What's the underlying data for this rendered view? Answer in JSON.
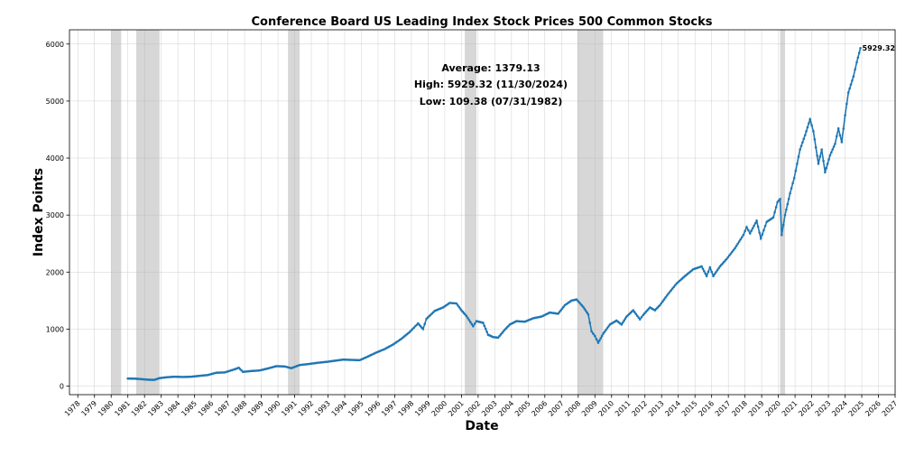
{
  "chart_data": {
    "type": "line",
    "title": "Conference Board US Leading Index Stock Prices 500 Common Stocks",
    "xlabel": "Date",
    "ylabel": "Index Points",
    "xlim": [
      1977.5,
      2027.0
    ],
    "ylim": [
      -150,
      6250
    ],
    "grid": true,
    "x_ticks": [
      1978,
      1979,
      1980,
      1981,
      1982,
      1983,
      1984,
      1985,
      1986,
      1987,
      1988,
      1989,
      1990,
      1991,
      1992,
      1993,
      1994,
      1995,
      1996,
      1997,
      1998,
      1999,
      2000,
      2001,
      2002,
      2003,
      2004,
      2005,
      2006,
      2007,
      2008,
      2009,
      2010,
      2011,
      2012,
      2013,
      2014,
      2015,
      2016,
      2017,
      2018,
      2019,
      2020,
      2021,
      2022,
      2023,
      2024,
      2025,
      2026,
      2027
    ],
    "y_ticks": [
      0,
      1000,
      2000,
      3000,
      4000,
      5000,
      6000
    ],
    "series_color": "#1f77b4",
    "recession_color": "#d3d3d3",
    "recessions": [
      {
        "start": 1980.0,
        "end": 1980.6
      },
      {
        "start": 1981.5,
        "end": 1982.9
      },
      {
        "start": 1990.6,
        "end": 1991.3
      },
      {
        "start": 2001.2,
        "end": 2001.9
      },
      {
        "start": 2007.95,
        "end": 2009.5
      },
      {
        "start": 2020.1,
        "end": 2020.4
      }
    ],
    "stats": {
      "average": "Average: 1379.13",
      "high": "High: 5929.32 (11/30/2024)",
      "low": "Low: 109.38 (07/31/1982)"
    },
    "end_label": "5929.32",
    "series": [
      {
        "name": "Stock Prices 500 Common Stocks",
        "points": [
          [
            1981.0,
            133
          ],
          [
            1981.4,
            131
          ],
          [
            1981.8,
            123
          ],
          [
            1982.2,
            113
          ],
          [
            1982.58,
            109.38
          ],
          [
            1982.9,
            140
          ],
          [
            1983.3,
            155
          ],
          [
            1983.8,
            165
          ],
          [
            1984.3,
            160
          ],
          [
            1984.8,
            165
          ],
          [
            1985.3,
            180
          ],
          [
            1985.8,
            195
          ],
          [
            1986.3,
            235
          ],
          [
            1986.8,
            240
          ],
          [
            1987.4,
            295
          ],
          [
            1987.65,
            322
          ],
          [
            1987.9,
            250
          ],
          [
            1988.4,
            265
          ],
          [
            1988.9,
            275
          ],
          [
            1989.4,
            310
          ],
          [
            1989.9,
            350
          ],
          [
            1990.4,
            345
          ],
          [
            1990.8,
            315
          ],
          [
            1991.3,
            370
          ],
          [
            1991.9,
            390
          ],
          [
            1992.4,
            410
          ],
          [
            1992.9,
            425
          ],
          [
            1993.4,
            445
          ],
          [
            1993.9,
            465
          ],
          [
            1994.4,
            460
          ],
          [
            1994.9,
            455
          ],
          [
            1995.4,
            520
          ],
          [
            1995.9,
            590
          ],
          [
            1996.4,
            650
          ],
          [
            1996.9,
            730
          ],
          [
            1997.4,
            830
          ],
          [
            1997.9,
            950
          ],
          [
            1998.4,
            1100
          ],
          [
            1998.7,
            1000
          ],
          [
            1998.9,
            1180
          ],
          [
            1999.4,
            1320
          ],
          [
            1999.9,
            1380
          ],
          [
            2000.3,
            1460
          ],
          [
            2000.7,
            1450
          ],
          [
            2001.0,
            1330
          ],
          [
            2001.3,
            1230
          ],
          [
            2001.7,
            1050
          ],
          [
            2001.9,
            1140
          ],
          [
            2002.3,
            1110
          ],
          [
            2002.6,
            900
          ],
          [
            2002.9,
            860
          ],
          [
            2003.2,
            850
          ],
          [
            2003.6,
            990
          ],
          [
            2003.9,
            1080
          ],
          [
            2004.3,
            1140
          ],
          [
            2004.8,
            1130
          ],
          [
            2005.3,
            1190
          ],
          [
            2005.8,
            1220
          ],
          [
            2006.3,
            1290
          ],
          [
            2006.8,
            1270
          ],
          [
            2007.2,
            1420
          ],
          [
            2007.6,
            1500
          ],
          [
            2007.9,
            1520
          ],
          [
            2008.3,
            1390
          ],
          [
            2008.6,
            1260
          ],
          [
            2008.8,
            960
          ],
          [
            2009.0,
            880
          ],
          [
            2009.2,
            760
          ],
          [
            2009.5,
            920
          ],
          [
            2009.9,
            1080
          ],
          [
            2010.3,
            1150
          ],
          [
            2010.6,
            1080
          ],
          [
            2010.9,
            1220
          ],
          [
            2011.3,
            1330
          ],
          [
            2011.7,
            1170
          ],
          [
            2011.9,
            1250
          ],
          [
            2012.3,
            1380
          ],
          [
            2012.6,
            1330
          ],
          [
            2012.9,
            1420
          ],
          [
            2013.4,
            1620
          ],
          [
            2013.9,
            1800
          ],
          [
            2014.4,
            1930
          ],
          [
            2014.9,
            2050
          ],
          [
            2015.4,
            2100
          ],
          [
            2015.7,
            1930
          ],
          [
            2015.9,
            2080
          ],
          [
            2016.1,
            1930
          ],
          [
            2016.5,
            2100
          ],
          [
            2016.9,
            2230
          ],
          [
            2017.4,
            2420
          ],
          [
            2017.9,
            2650
          ],
          [
            2018.1,
            2790
          ],
          [
            2018.3,
            2680
          ],
          [
            2018.7,
            2900
          ],
          [
            2018.95,
            2590
          ],
          [
            2019.3,
            2880
          ],
          [
            2019.7,
            2960
          ],
          [
            2019.95,
            3230
          ],
          [
            2020.1,
            3280
          ],
          [
            2020.2,
            2650
          ],
          [
            2020.4,
            3000
          ],
          [
            2020.7,
            3380
          ],
          [
            2020.95,
            3650
          ],
          [
            2021.3,
            4150
          ],
          [
            2021.6,
            4400
          ],
          [
            2021.9,
            4680
          ],
          [
            2022.1,
            4470
          ],
          [
            2022.4,
            3900
          ],
          [
            2022.6,
            4150
          ],
          [
            2022.8,
            3750
          ],
          [
            2023.1,
            4050
          ],
          [
            2023.4,
            4250
          ],
          [
            2023.6,
            4520
          ],
          [
            2023.8,
            4280
          ],
          [
            2024.0,
            4750
          ],
          [
            2024.2,
            5150
          ],
          [
            2024.5,
            5430
          ],
          [
            2024.7,
            5680
          ],
          [
            2024.92,
            5929.32
          ]
        ]
      }
    ]
  }
}
